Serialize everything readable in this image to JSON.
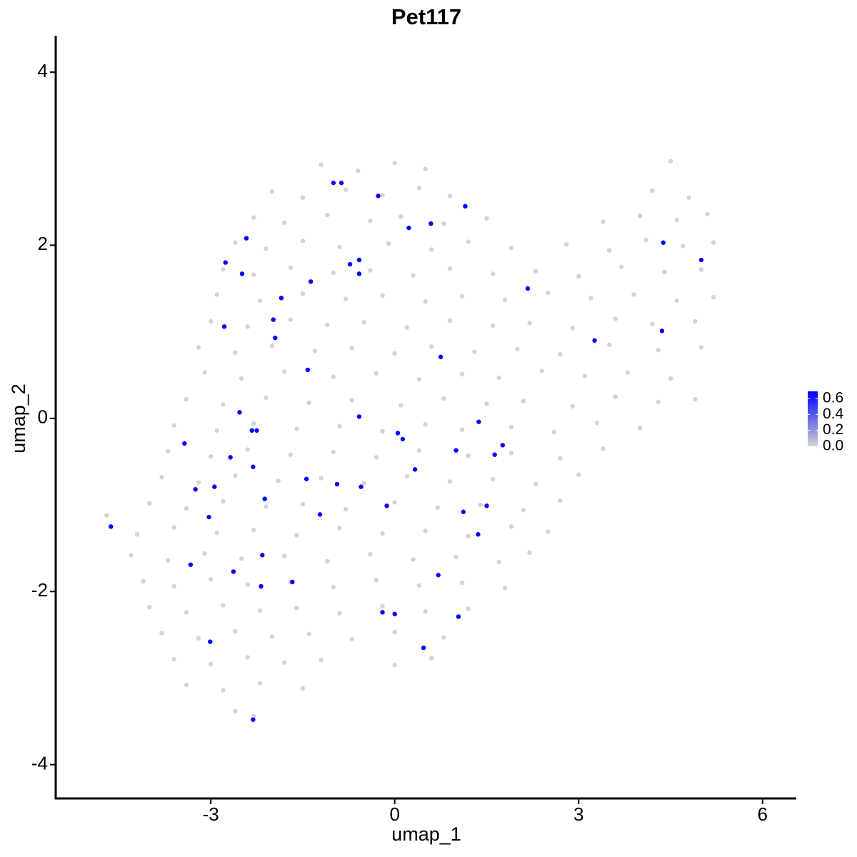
{
  "chart_data": {
    "type": "scatter",
    "title": "Pet117",
    "xlabel": "umap_1",
    "ylabel": "umap_2",
    "xlim": [
      -5.53,
      6.55
    ],
    "ylim": [
      -4.39,
      4.42
    ],
    "xticks": [
      -3,
      0,
      3,
      6
    ],
    "yticks": [
      -4,
      -2,
      0,
      2,
      4
    ],
    "grid": false,
    "color_low": "#d3d3d3",
    "color_high": "#0000ff",
    "color_range": [
      0,
      0.69
    ],
    "colorbar_ticks": [
      {
        "value": 0,
        "label": "0.0"
      },
      {
        "value": 0.2,
        "label": "0.2"
      },
      {
        "value": 0.4,
        "label": "0.4"
      },
      {
        "value": 0.6,
        "label": "0.6"
      }
    ],
    "x": [
      -1.2,
      -0.6,
      0.0,
      0.5,
      4.5,
      -2.0,
      -1.5,
      -0.8,
      -0.2,
      0.4,
      0.9,
      4.2,
      4.8,
      -2.3,
      -1.8,
      -1.1,
      -0.4,
      0.1,
      0.8,
      1.5,
      3.4,
      4.0,
      4.6,
      5.1,
      -2.6,
      -2.1,
      -1.5,
      -0.9,
      -0.1,
      0.6,
      1.2,
      1.9,
      2.8,
      3.5,
      4.1,
      4.7,
      5.2,
      -2.8,
      -2.3,
      -1.7,
      -1.0,
      -0.4,
      0.3,
      0.9,
      1.6,
      2.3,
      3.0,
      3.7,
      4.4,
      5.0,
      -2.9,
      -2.2,
      -1.5,
      -0.8,
      -0.2,
      0.5,
      1.1,
      1.8,
      2.5,
      3.2,
      3.9,
      4.6,
      5.2,
      -3.0,
      -2.4,
      -1.7,
      -1.1,
      -0.5,
      0.2,
      0.9,
      1.6,
      2.2,
      2.9,
      3.6,
      4.2,
      4.9,
      -3.2,
      -2.6,
      -2.0,
      -1.3,
      -0.7,
      0.0,
      0.6,
      1.3,
      2.0,
      2.7,
      3.5,
      4.3,
      5.0,
      -3.1,
      -2.5,
      -1.8,
      -1.0,
      -0.3,
      0.4,
      1.1,
      1.7,
      2.4,
      3.1,
      3.8,
      4.5,
      -3.4,
      -2.8,
      -2.1,
      -1.4,
      -0.7,
      0.1,
      0.8,
      1.5,
      2.1,
      2.9,
      3.6,
      4.3,
      4.9,
      -3.6,
      -2.9,
      -2.3,
      -1.6,
      -0.9,
      -0.2,
      0.5,
      1.1,
      1.9,
      2.6,
      3.3,
      4.0,
      -3.7,
      -3.0,
      -2.4,
      -1.7,
      -1.0,
      -0.3,
      0.4,
      1.2,
      1.9,
      2.7,
      3.4,
      -3.8,
      -3.2,
      -2.6,
      -1.9,
      -1.2,
      -0.5,
      0.2,
      0.9,
      1.6,
      2.3,
      3.0,
      -4.0,
      -3.4,
      -2.8,
      -2.1,
      -1.5,
      -0.8,
      0.0,
      0.7,
      1.4,
      2.1,
      2.7,
      -4.7,
      -4.2,
      -3.6,
      -2.9,
      -2.3,
      -1.6,
      -0.9,
      -0.2,
      0.5,
      1.2,
      1.9,
      2.5,
      -4.3,
      -3.7,
      -3.1,
      -2.5,
      -1.8,
      -1.1,
      -0.4,
      0.3,
      1.0,
      1.7,
      2.2,
      -4.1,
      -3.6,
      -3.0,
      -2.4,
      -1.7,
      -1.0,
      -0.3,
      0.4,
      1.1,
      1.8,
      -4.0,
      -3.4,
      -2.8,
      -2.2,
      -1.6,
      -0.9,
      -0.2,
      0.5,
      1.2,
      -3.8,
      -3.2,
      -2.6,
      -2.0,
      -1.4,
      -0.7,
      0.0,
      0.8,
      -3.6,
      -3.0,
      -2.4,
      -1.8,
      -1.2,
      0.0,
      0.6,
      -3.4,
      -2.8,
      -2.2,
      -1.5,
      -2.6,
      -2.3,
      -4.63,
      -1.0,
      -0.87,
      -0.27,
      1.15,
      0.23,
      0.59,
      -2.42,
      -2.76,
      -2.49,
      -0.73,
      -0.58,
      -0.58,
      -1.37,
      -1.85,
      -1.98,
      -1.95,
      -2.78,
      2.17,
      4.38,
      5.0,
      4.36,
      3.26,
      0.75,
      -1.42,
      -2.53,
      -0.58,
      -2.33,
      -2.25,
      -3.43,
      0.05,
      0.13,
      1.37,
      1.0,
      1.76,
      1.63,
      -2.68,
      -2.31,
      0.33,
      -1.44,
      -0.94,
      -0.55,
      -3.25,
      -2.94,
      -2.12,
      -0.13,
      1.5,
      1.12,
      -1.22,
      -3.03,
      1.36,
      -2.16,
      -3.33,
      -2.63,
      -1.67,
      -2.18,
      0.71,
      -0.2,
      0.0,
      1.04,
      -3.01,
      0.47,
      -2.31
    ],
    "y": [
      2.93,
      2.86,
      2.95,
      2.88,
      2.97,
      2.62,
      2.55,
      2.64,
      2.58,
      2.66,
      2.57,
      2.63,
      2.55,
      2.32,
      2.26,
      2.35,
      2.28,
      2.33,
      2.25,
      2.31,
      2.27,
      2.34,
      2.29,
      2.36,
      2.03,
      1.96,
      2.05,
      1.98,
      2.02,
      1.95,
      2.04,
      1.97,
      2.01,
      1.94,
      2.06,
      1.99,
      2.03,
      1.72,
      1.66,
      1.74,
      1.68,
      1.71,
      1.65,
      1.73,
      1.67,
      1.7,
      1.64,
      1.75,
      1.69,
      1.72,
      1.43,
      1.36,
      1.44,
      1.38,
      1.42,
      1.35,
      1.41,
      1.37,
      1.45,
      1.39,
      1.43,
      1.36,
      1.4,
      1.12,
      1.06,
      1.14,
      1.08,
      1.11,
      1.05,
      1.13,
      1.07,
      1.1,
      1.04,
      1.15,
      1.09,
      1.12,
      0.82,
      0.76,
      0.84,
      0.78,
      0.81,
      0.75,
      0.83,
      0.77,
      0.8,
      0.74,
      0.85,
      0.79,
      0.82,
      0.53,
      0.46,
      0.54,
      0.48,
      0.52,
      0.45,
      0.51,
      0.47,
      0.55,
      0.49,
      0.53,
      0.46,
      0.22,
      0.16,
      0.24,
      0.18,
      0.21,
      0.15,
      0.23,
      0.17,
      0.2,
      0.14,
      0.25,
      0.19,
      0.22,
      -0.08,
      -0.14,
      -0.06,
      -0.12,
      -0.09,
      -0.15,
      -0.07,
      -0.13,
      -0.1,
      -0.16,
      -0.05,
      -0.11,
      -0.38,
      -0.44,
      -0.36,
      -0.42,
      -0.39,
      -0.45,
      -0.37,
      -0.43,
      -0.4,
      -0.46,
      -0.35,
      -0.68,
      -0.74,
      -0.66,
      -0.72,
      -0.69,
      -0.75,
      -0.67,
      -0.73,
      -0.7,
      -0.76,
      -0.65,
      -0.98,
      -1.04,
      -0.96,
      -1.02,
      -0.99,
      -1.05,
      -0.97,
      -1.03,
      -1.0,
      -1.06,
      -0.95,
      -1.12,
      -1.34,
      -1.26,
      -1.32,
      -1.29,
      -1.35,
      -1.27,
      -1.33,
      -1.3,
      -1.36,
      -1.25,
      -1.31,
      -1.58,
      -1.64,
      -1.56,
      -1.62,
      -1.59,
      -1.65,
      -1.57,
      -1.63,
      -1.6,
      -1.66,
      -1.55,
      -1.88,
      -1.94,
      -1.86,
      -1.92,
      -1.89,
      -1.95,
      -1.87,
      -1.93,
      -1.9,
      -1.96,
      -2.18,
      -2.24,
      -2.16,
      -2.22,
      -2.19,
      -2.25,
      -2.17,
      -2.23,
      -2.2,
      -2.48,
      -2.54,
      -2.46,
      -2.52,
      -2.49,
      -2.55,
      -2.47,
      -2.53,
      -2.78,
      -2.84,
      -2.76,
      -2.82,
      -2.79,
      -2.85,
      -2.77,
      -3.08,
      -3.14,
      -3.06,
      -3.12,
      -3.38,
      -3.44,
      -1.25,
      2.72,
      2.72,
      2.57,
      2.45,
      2.2,
      2.25,
      2.08,
      1.8,
      1.67,
      1.78,
      1.83,
      1.67,
      1.58,
      1.39,
      1.14,
      0.93,
      1.06,
      1.5,
      2.03,
      1.83,
      1.01,
      0.9,
      0.71,
      0.56,
      0.07,
      0.02,
      -0.14,
      -0.14,
      -0.29,
      -0.17,
      -0.24,
      -0.04,
      -0.37,
      -0.31,
      -0.42,
      -0.45,
      -0.56,
      -0.59,
      -0.7,
      -0.76,
      -0.79,
      -0.82,
      -0.79,
      -0.93,
      -1.01,
      -1.01,
      -1.08,
      -1.11,
      -1.14,
      -1.34,
      -1.58,
      -1.69,
      -1.77,
      -1.89,
      -1.94,
      -1.81,
      -2.24,
      -2.26,
      -2.29,
      -2.58,
      -2.65,
      -3.48
    ],
    "values": [
      0,
      0,
      0,
      0,
      0,
      0,
      0,
      0,
      0,
      0,
      0,
      0,
      0,
      0,
      0,
      0,
      0,
      0,
      0,
      0,
      0,
      0,
      0,
      0,
      0,
      0,
      0,
      0,
      0,
      0,
      0,
      0,
      0,
      0,
      0,
      0,
      0,
      0,
      0,
      0,
      0,
      0,
      0,
      0,
      0,
      0,
      0,
      0,
      0,
      0,
      0,
      0,
      0,
      0,
      0,
      0,
      0,
      0,
      0,
      0,
      0,
      0,
      0,
      0,
      0,
      0,
      0,
      0,
      0,
      0,
      0,
      0,
      0,
      0,
      0,
      0,
      0,
      0,
      0,
      0,
      0,
      0,
      0,
      0,
      0,
      0,
      0,
      0,
      0,
      0,
      0,
      0,
      0,
      0,
      0,
      0,
      0,
      0,
      0,
      0,
      0,
      0,
      0,
      0,
      0,
      0,
      0,
      0,
      0,
      0,
      0,
      0,
      0,
      0,
      0,
      0,
      0,
      0,
      0,
      0,
      0,
      0,
      0,
      0,
      0,
      0,
      0,
      0,
      0,
      0,
      0,
      0,
      0,
      0,
      0,
      0,
      0,
      0,
      0,
      0,
      0,
      0,
      0,
      0,
      0,
      0,
      0,
      0,
      0,
      0,
      0,
      0,
      0,
      0,
      0,
      0,
      0,
      0,
      0,
      0,
      0,
      0,
      0,
      0,
      0,
      0,
      0,
      0,
      0,
      0,
      0,
      0,
      0,
      0,
      0,
      0,
      0,
      0,
      0,
      0,
      0,
      0,
      0,
      0,
      0,
      0,
      0,
      0,
      0,
      0,
      0,
      0,
      0,
      0,
      0,
      0,
      0,
      0,
      0,
      0,
      0,
      0,
      0,
      0,
      0,
      0,
      0,
      0,
      0,
      0,
      0,
      0,
      0,
      0,
      0,
      0,
      0,
      0,
      0,
      0,
      0,
      0,
      0.69,
      0.69,
      0.69,
      0.69,
      0.69,
      0.69,
      0.69,
      0.69,
      0.69,
      0.69,
      0.69,
      0.69,
      0.69,
      0.69,
      0.69,
      0.69,
      0.69,
      0.69,
      0.69,
      0.69,
      0.69,
      0.69,
      0.69,
      0.69,
      0.69,
      0.69,
      0.69,
      0.69,
      0.69,
      0.69,
      0.69,
      0.69,
      0.69,
      0.69,
      0.69,
      0.69,
      0.69,
      0.69,
      0.69,
      0.69,
      0.69,
      0.69,
      0.69,
      0.69,
      0.69,
      0.69,
      0.69,
      0.69,
      0.69,
      0.69,
      0.69,
      0.69,
      0.69,
      0.69,
      0.69,
      0.69,
      0.69,
      0.69,
      0.69,
      0.69,
      0.69,
      0.69,
      0.69
    ]
  }
}
